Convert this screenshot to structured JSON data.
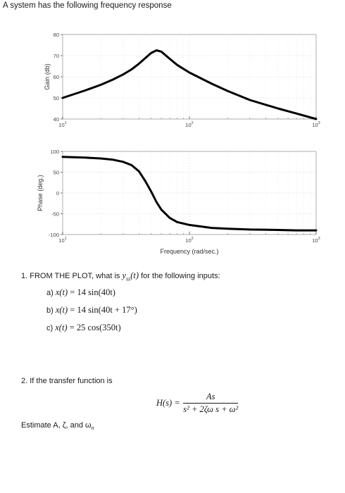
{
  "intro": "A system has the following frequency response",
  "gain_chart": {
    "type": "line",
    "ylabel": "Gain (db)",
    "xscale": "log",
    "xlim": [
      10,
      1000
    ],
    "ylim": [
      40,
      80
    ],
    "yticks": [
      "40",
      "50",
      "60",
      "70",
      "80"
    ],
    "xticks": [
      "10",
      "10",
      "10"
    ],
    "xtick_exps": [
      "1",
      "2",
      "3"
    ],
    "grid": true,
    "series": [
      {
        "x": [
          10,
          15,
          20,
          25,
          30,
          35,
          40,
          45,
          50,
          55,
          60,
          70,
          80,
          100,
          150,
          200,
          300,
          500,
          700,
          1000
        ],
        "y": [
          50,
          53.5,
          56.2,
          58.7,
          61.1,
          63.5,
          66.2,
          68.9,
          71.3,
          72.5,
          71.9,
          68.5,
          65.6,
          62,
          56.7,
          53.3,
          49,
          45,
          42.6,
          40
        ]
      }
    ]
  },
  "phase_chart": {
    "type": "line",
    "ylabel": "Phase (deg.)",
    "xlabel": "Frequency (rad/sec.)",
    "xscale": "log",
    "xlim": [
      10,
      1000
    ],
    "ylim": [
      -100,
      100
    ],
    "yticks": [
      "-100",
      "-50",
      "0",
      "50",
      "100"
    ],
    "xticks": [
      "10",
      "10",
      "10"
    ],
    "xtick_exps": [
      "1",
      "2",
      "3"
    ],
    "grid": true,
    "series": [
      {
        "x": [
          10,
          15,
          20,
          25,
          30,
          35,
          40,
          45,
          50,
          55,
          60,
          70,
          80,
          100,
          150,
          200,
          300,
          500,
          700,
          1000
        ],
        "y": [
          87,
          85,
          83,
          80,
          75,
          67,
          52,
          28,
          3,
          -22,
          -40,
          -60,
          -70,
          -77,
          -84,
          -86,
          -88,
          -89,
          -90,
          -90
        ]
      }
    ]
  },
  "question1": {
    "prefix": "1. FROM THE PLOT, what is",
    "suffix": "for the following inputs:",
    "items": [
      {
        "label": "a)",
        "lhs": "x(t)",
        "eq": "= 14 sin(40t)"
      },
      {
        "label": "b)",
        "lhs": "x(t)",
        "eq": "= 14 sin(40t + 17°)"
      },
      {
        "label": "c)",
        "lhs": "x(t)",
        "eq": "= 25 cos(350t)"
      }
    ]
  },
  "question2": {
    "text": "2. If the transfer function is",
    "lhs": "H(s) =",
    "numerator": "As",
    "denominator": "s² + 2ζω s + ω²",
    "estimate_prefix": "Estimate A, ζ, and ω",
    "estimate_sub": "n"
  }
}
